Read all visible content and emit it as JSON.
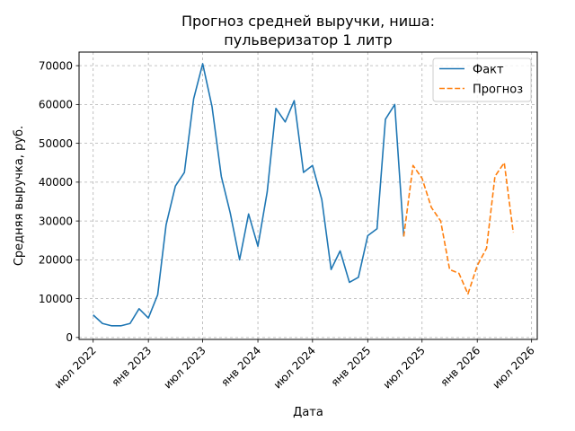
{
  "chart_data": {
    "type": "line",
    "title_lines": [
      "Прогноз средней выручки, ниша:",
      "пульверизатор 1 литр"
    ],
    "xlabel": "Дата",
    "ylabel": "Средняя выручка, руб.",
    "x_ticks": [
      "июл 2022",
      "янв 2023",
      "июл 2023",
      "янв 2024",
      "июл 2024",
      "янв 2025",
      "июл 2025",
      "янв 2026",
      "июл 2026"
    ],
    "y_ticks": [
      "0",
      "10000",
      "20000",
      "30000",
      "40000",
      "50000",
      "60000",
      "70000"
    ],
    "ylim": [
      -500,
      73500
    ],
    "xlim": [
      "2022-05-15",
      "2026-07-20"
    ],
    "grid": true,
    "legend_position": "top-right",
    "series": [
      {
        "name": "Факт",
        "color": "#1f77b4",
        "style": "solid",
        "x": [
          "2022-07-01",
          "2022-08-01",
          "2022-09-01",
          "2022-10-01",
          "2022-11-01",
          "2022-12-01",
          "2023-01-01",
          "2023-02-01",
          "2023-03-01",
          "2023-04-01",
          "2023-05-01",
          "2023-06-01",
          "2023-07-01",
          "2023-08-01",
          "2023-09-01",
          "2023-10-01",
          "2023-11-01",
          "2023-12-01",
          "2024-01-01",
          "2024-02-01",
          "2024-03-01",
          "2024-04-01",
          "2024-05-01",
          "2024-06-01",
          "2024-07-01",
          "2024-08-01",
          "2024-09-01",
          "2024-10-01",
          "2024-11-01",
          "2024-12-01",
          "2025-01-01",
          "2025-02-01",
          "2025-03-01",
          "2025-04-01",
          "2025-05-01"
        ],
        "values": [
          5800,
          3600,
          3000,
          3000,
          3600,
          7400,
          5000,
          11000,
          29000,
          39000,
          42500,
          61500,
          70500,
          59500,
          41500,
          32000,
          20000,
          31800,
          23500,
          37500,
          59000,
          55500,
          61000,
          42500,
          44300,
          35500,
          17500,
          22300,
          14200,
          15500,
          26200,
          28000,
          56200,
          60000,
          26000
        ]
      },
      {
        "name": "Прогноз",
        "color": "#ff7f0e",
        "style": "dashed",
        "x": [
          "2025-05-01",
          "2025-06-01",
          "2025-07-01",
          "2025-08-01",
          "2025-09-01",
          "2025-10-01",
          "2025-11-01",
          "2025-12-01",
          "2026-01-01",
          "2026-02-01",
          "2026-03-01",
          "2026-04-01",
          "2026-05-01"
        ],
        "values": [
          26000,
          44300,
          41000,
          33500,
          30000,
          17500,
          16500,
          11200,
          18500,
          23000,
          41500,
          45000,
          27000
        ]
      }
    ]
  }
}
